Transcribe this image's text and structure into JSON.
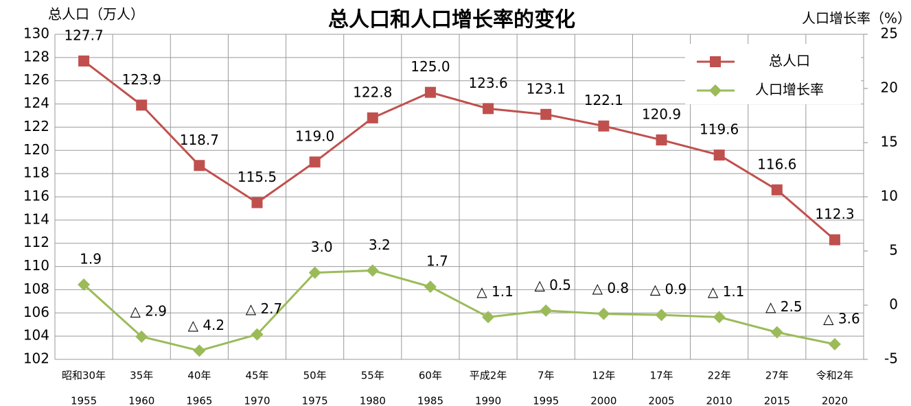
{
  "chart_data": {
    "type": "line",
    "title": "总人口和人口增长率的变化",
    "y_label": "总人口（万人）",
    "y2_label": "人口增长率（%）",
    "categories": [
      "昭和30年",
      "35年",
      "40年",
      "45年",
      "50年",
      "55年",
      "60年",
      "平成2年",
      "7年",
      "12年",
      "17年",
      "22年",
      "27年",
      "令和2年"
    ],
    "years": [
      1955,
      1960,
      1965,
      1970,
      1975,
      1980,
      1985,
      1990,
      1995,
      2000,
      2005,
      2010,
      2015,
      2020
    ],
    "series": [
      {
        "name": "总人口",
        "color": "#c0504d",
        "marker": "square",
        "values": [
          127.7,
          123.9,
          118.7,
          115.5,
          119.0,
          122.8,
          125.0,
          123.6,
          123.1,
          122.1,
          120.9,
          119.6,
          116.6,
          112.3
        ],
        "value_labels": [
          "127.7",
          "123.9",
          "118.7",
          "115.5",
          "119.0",
          "122.8",
          "125.0",
          "123.6",
          "123.1",
          "122.1",
          "120.9",
          "119.6",
          "116.6",
          "112.3"
        ]
      },
      {
        "name": "人口增长率",
        "color": "#9bbb59",
        "marker": "diamond",
        "axis": "y2",
        "values": [
          1.9,
          -2.9,
          -4.2,
          -2.7,
          3.0,
          3.2,
          1.7,
          -1.1,
          -0.5,
          -0.8,
          -0.9,
          -1.1,
          -2.5,
          -3.6
        ],
        "value_labels": [
          "1.9",
          "△ 2.9",
          "△ 4.2",
          "△ 2.7",
          "3.0",
          "3.2",
          "1.7",
          "△ 1.1",
          "△ 0.5",
          "△ 0.8",
          "△ 0.9",
          "△ 1.1",
          "△ 2.5",
          "△ 3.6"
        ]
      }
    ],
    "ylim": [
      102,
      130
    ],
    "yticks": [
      102,
      104,
      106,
      108,
      110,
      112,
      114,
      116,
      118,
      120,
      122,
      124,
      126,
      128,
      130
    ],
    "y2lim": [
      -5,
      25
    ],
    "y2ticks": [
      -5,
      0,
      5,
      10,
      15,
      20,
      25
    ],
    "grid": true,
    "legend": "upper right"
  }
}
